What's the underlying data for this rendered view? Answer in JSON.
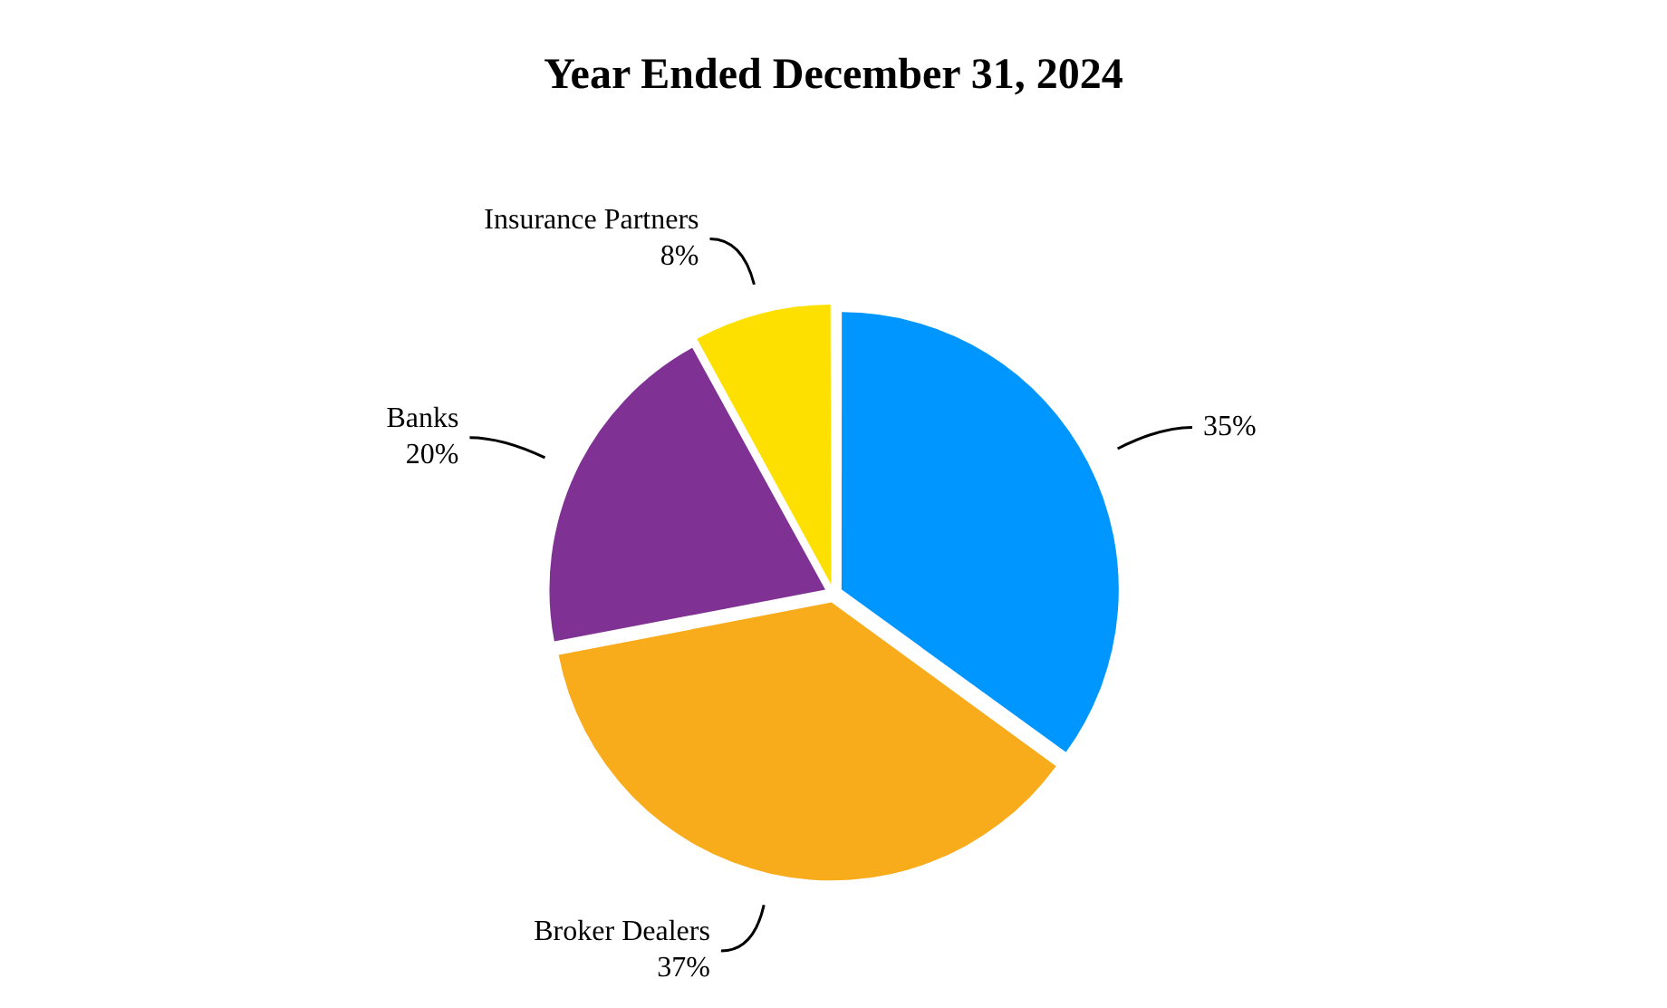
{
  "chart_data": {
    "type": "pie",
    "title": "Year Ended December 31, 2024",
    "categories": [
      null,
      "Broker Dealers",
      "Banks",
      "Insurance Partners"
    ],
    "values": [
      35,
      37,
      20,
      8
    ],
    "colors": [
      "#0096ff",
      "#f9ac1b",
      "#7f3294",
      "#fde000"
    ],
    "value_labels": [
      "35%",
      "37%",
      "20%",
      "8%"
    ],
    "legend": false
  }
}
